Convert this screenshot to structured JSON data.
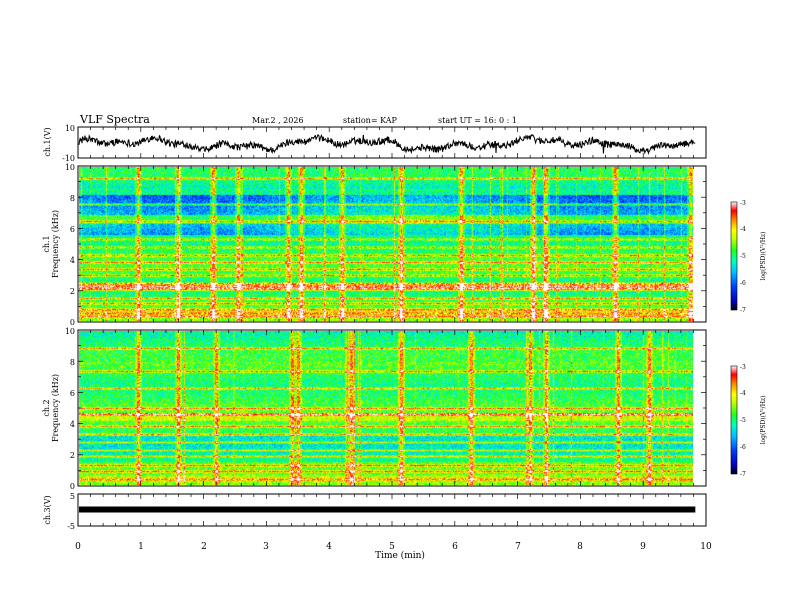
{
  "chart_data": {
    "type": "heatmap",
    "header": {
      "title": "VLF Spectra",
      "date": "Mar.2 , 2026",
      "station": "station= KAP",
      "start": "start UT =  16: 0 : 1"
    },
    "time_axis": {
      "label": "Time (min)",
      "range": [
        0,
        10
      ],
      "ticks": [
        "0",
        "1",
        "2",
        "3",
        "4",
        "5",
        "6",
        "7",
        "8",
        "9",
        "10"
      ],
      "data_end": 9.83
    },
    "panels": [
      {
        "id": "ch1-waveform",
        "type": "line",
        "ylabel": "ch.1(V)",
        "ylim": [
          -10,
          10
        ],
        "ticks": [
          "10",
          "-10"
        ]
      },
      {
        "id": "ch1-spectrogram",
        "type": "heatmap",
        "ylabel_top": "ch.1",
        "ylabel": "Frequency (kHz)",
        "ylim": [
          0,
          10
        ],
        "ticks": [
          "0",
          "2",
          "4",
          "6",
          "8",
          "10"
        ],
        "colorbar": {
          "label": "log(PSD)(V²/Hz)",
          "range": [
            -7,
            -3
          ],
          "ticks": [
            "-3",
            "-4",
            "-5",
            "-6",
            "-7"
          ]
        },
        "lines_khz": [
          0.3,
          0.5,
          0.8,
          1.2,
          1.5,
          2.15,
          2.3,
          2.5,
          3.0,
          3.4,
          3.8,
          4.3,
          4.8,
          5.3,
          6.5,
          7.6,
          9.3
        ],
        "bursts_min": [
          0.95,
          1.6,
          2.15,
          2.55,
          3.35,
          3.55,
          4.2,
          5.15,
          6.1,
          7.25,
          7.45,
          8.55,
          9.75
        ]
      },
      {
        "id": "ch2-spectrogram",
        "type": "heatmap",
        "ylabel_top": "ch.2",
        "ylabel": "Frequency (kHz)",
        "ylim": [
          0,
          10
        ],
        "ticks": [
          "0",
          "2",
          "4",
          "6",
          "8",
          "10"
        ],
        "colorbar": {
          "label": "log(PSD)(V²/Hz)",
          "range": [
            -7,
            -3
          ],
          "ticks": [
            "-3",
            "-4",
            "-5",
            "-6",
            "-7"
          ]
        },
        "lines_khz": [
          0.4,
          0.9,
          1.3,
          1.9,
          2.3,
          2.8,
          3.3,
          3.8,
          4.6,
          5.0,
          6.3,
          7.4,
          8.9
        ],
        "bursts_min": [
          0.95,
          1.6,
          2.2,
          3.4,
          3.5,
          4.35,
          5.15,
          6.25,
          7.2,
          7.45,
          8.6,
          9.1
        ]
      },
      {
        "id": "ch3-waveform",
        "type": "line",
        "ylabel": "ch.3(V)",
        "ylim": [
          -5,
          5
        ],
        "ticks": [
          "5",
          "-5"
        ],
        "constant_value": 0
      }
    ]
  }
}
